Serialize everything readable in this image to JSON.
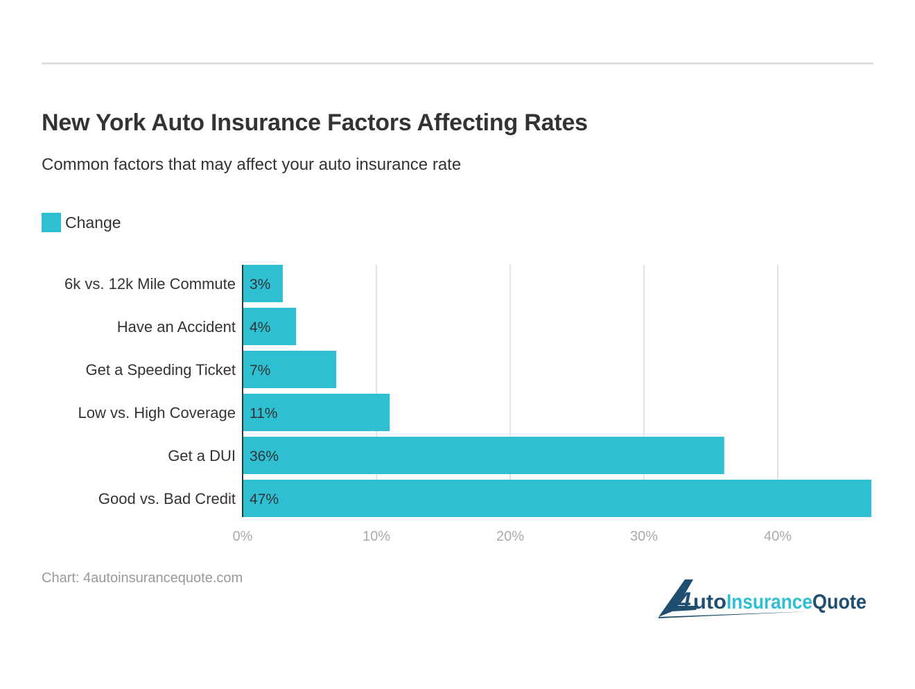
{
  "title": "New York Auto Insurance Factors Affecting Rates",
  "subtitle": "Common factors that may affect your auto insurance rate",
  "source": "Chart: 4autoinsurancequote.com",
  "logo_text": "4AutoInsuranceQuote",
  "colors": {
    "bar": "#2ebfd3",
    "logo_dark": "#1f4e70",
    "logo_light": "#2ebfd3"
  },
  "chart_data": {
    "type": "bar",
    "orientation": "horizontal",
    "categories": [
      "6k vs. 12k Mile Commute",
      "Have an Accident",
      "Get a Speeding Ticket",
      "Low vs. High Coverage",
      "Get a DUI",
      "Good vs. Bad Credit"
    ],
    "series": [
      {
        "name": "Change",
        "values": [
          3,
          4,
          7,
          11,
          36,
          47
        ]
      }
    ],
    "data_labels": [
      "3%",
      "4%",
      "7%",
      "11%",
      "36%",
      "47%"
    ],
    "xlim": [
      0,
      47
    ],
    "xticks": [
      0,
      10,
      20,
      30,
      40
    ],
    "xtick_labels": [
      "0%",
      "10%",
      "20%",
      "30%",
      "40%"
    ],
    "grid": true,
    "legend": "top-left"
  }
}
